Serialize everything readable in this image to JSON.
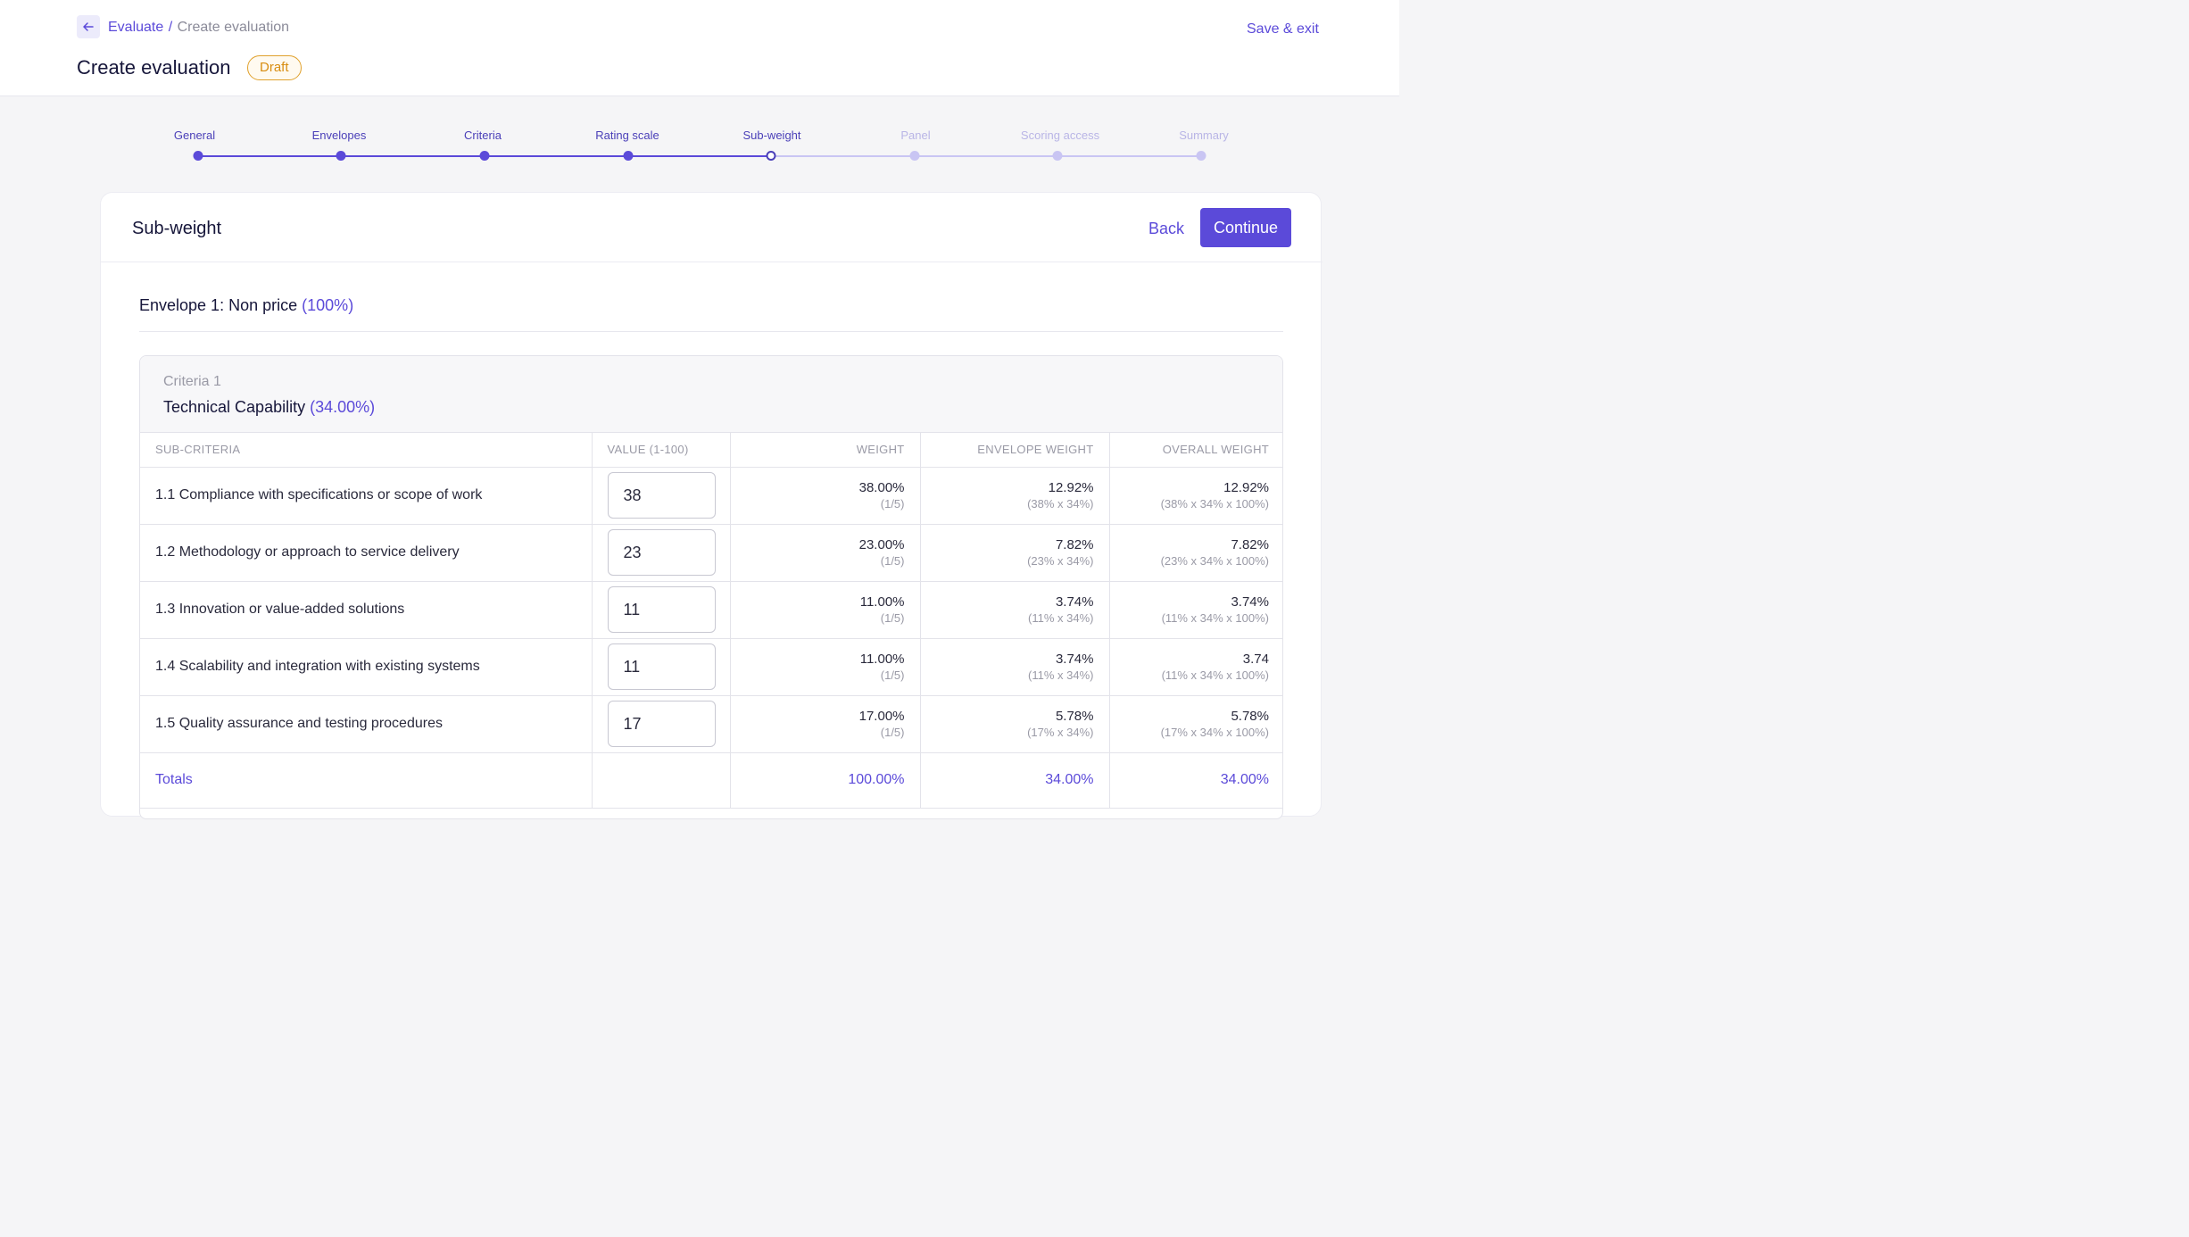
{
  "header": {
    "breadcrumb": {
      "parent": "Evaluate",
      "separator": "/",
      "current": "Create evaluation"
    },
    "title": "Create evaluation",
    "status_badge": "Draft",
    "save_exit": "Save & exit"
  },
  "stepper": {
    "steps": [
      {
        "label": "General",
        "state": "done"
      },
      {
        "label": "Envelopes",
        "state": "done"
      },
      {
        "label": "Criteria",
        "state": "done"
      },
      {
        "label": "Rating scale",
        "state": "done"
      },
      {
        "label": "Sub-weight",
        "state": "active"
      },
      {
        "label": "Panel",
        "state": "todo"
      },
      {
        "label": "Scoring access",
        "state": "todo"
      },
      {
        "label": "Summary",
        "state": "todo"
      }
    ]
  },
  "card": {
    "title": "Sub-weight",
    "back_label": "Back",
    "continue_label": "Continue"
  },
  "envelope": {
    "prefix": "Envelope 1:",
    "name": "Non price",
    "percent": "(100%)"
  },
  "criteria": {
    "label": "Criteria 1",
    "name": "Technical Capability",
    "percent": "(34.00%)"
  },
  "table": {
    "columns": [
      "SUB-CRITERIA",
      "VALUE (1-100)",
      "WEIGHT",
      "ENVELOPE WEIGHT",
      "OVERALL WEIGHT"
    ],
    "rows": [
      {
        "name": "1.1 Compliance with specifications or scope of work",
        "value": "38",
        "weight": "38.00%",
        "weight_sub": "(1/5)",
        "envelope_weight": "12.92%",
        "envelope_sub": "(38% x 34%)",
        "overall_weight": "12.92%",
        "overall_sub": "(38% x 34% x 100%)"
      },
      {
        "name": "1.2 Methodology or approach to service delivery",
        "value": "23",
        "weight": "23.00%",
        "weight_sub": "(1/5)",
        "envelope_weight": "7.82%",
        "envelope_sub": "(23% x 34%)",
        "overall_weight": "7.82%",
        "overall_sub": "(23% x 34% x 100%)"
      },
      {
        "name": "1.3 Innovation or value-added solutions",
        "value": "11",
        "weight": "11.00%",
        "weight_sub": "(1/5)",
        "envelope_weight": "3.74%",
        "envelope_sub": "(11% x 34%)",
        "overall_weight": "3.74%",
        "overall_sub": "(11% x 34% x 100%)"
      },
      {
        "name": "1.4 Scalability and integration with existing systems",
        "value": "11",
        "weight": "11.00%",
        "weight_sub": "(1/5)",
        "envelope_weight": "3.74%",
        "envelope_sub": "(11% x 34%)",
        "overall_weight": "3.74",
        "overall_sub": "(11% x 34% x 100%)"
      },
      {
        "name": "1.5 Quality assurance and testing procedures",
        "value": "17",
        "weight": "17.00%",
        "weight_sub": "(1/5)",
        "envelope_weight": "5.78%",
        "envelope_sub": "(17% x 34%)",
        "overall_weight": "5.78%",
        "overall_sub": "(17% x 34% x 100%)"
      }
    ],
    "totals": {
      "label": "Totals",
      "weight": "100.00%",
      "envelope_weight": "34.00%",
      "overall_weight": "34.00%"
    }
  },
  "colors": {
    "accent": "#5b4ad9",
    "accent_light": "#c9c5f3",
    "draft": "#d88d10",
    "text_dark": "#16163a",
    "text_muted": "#9a9aa6"
  },
  "icons": {
    "back": "arrow-left-icon"
  }
}
